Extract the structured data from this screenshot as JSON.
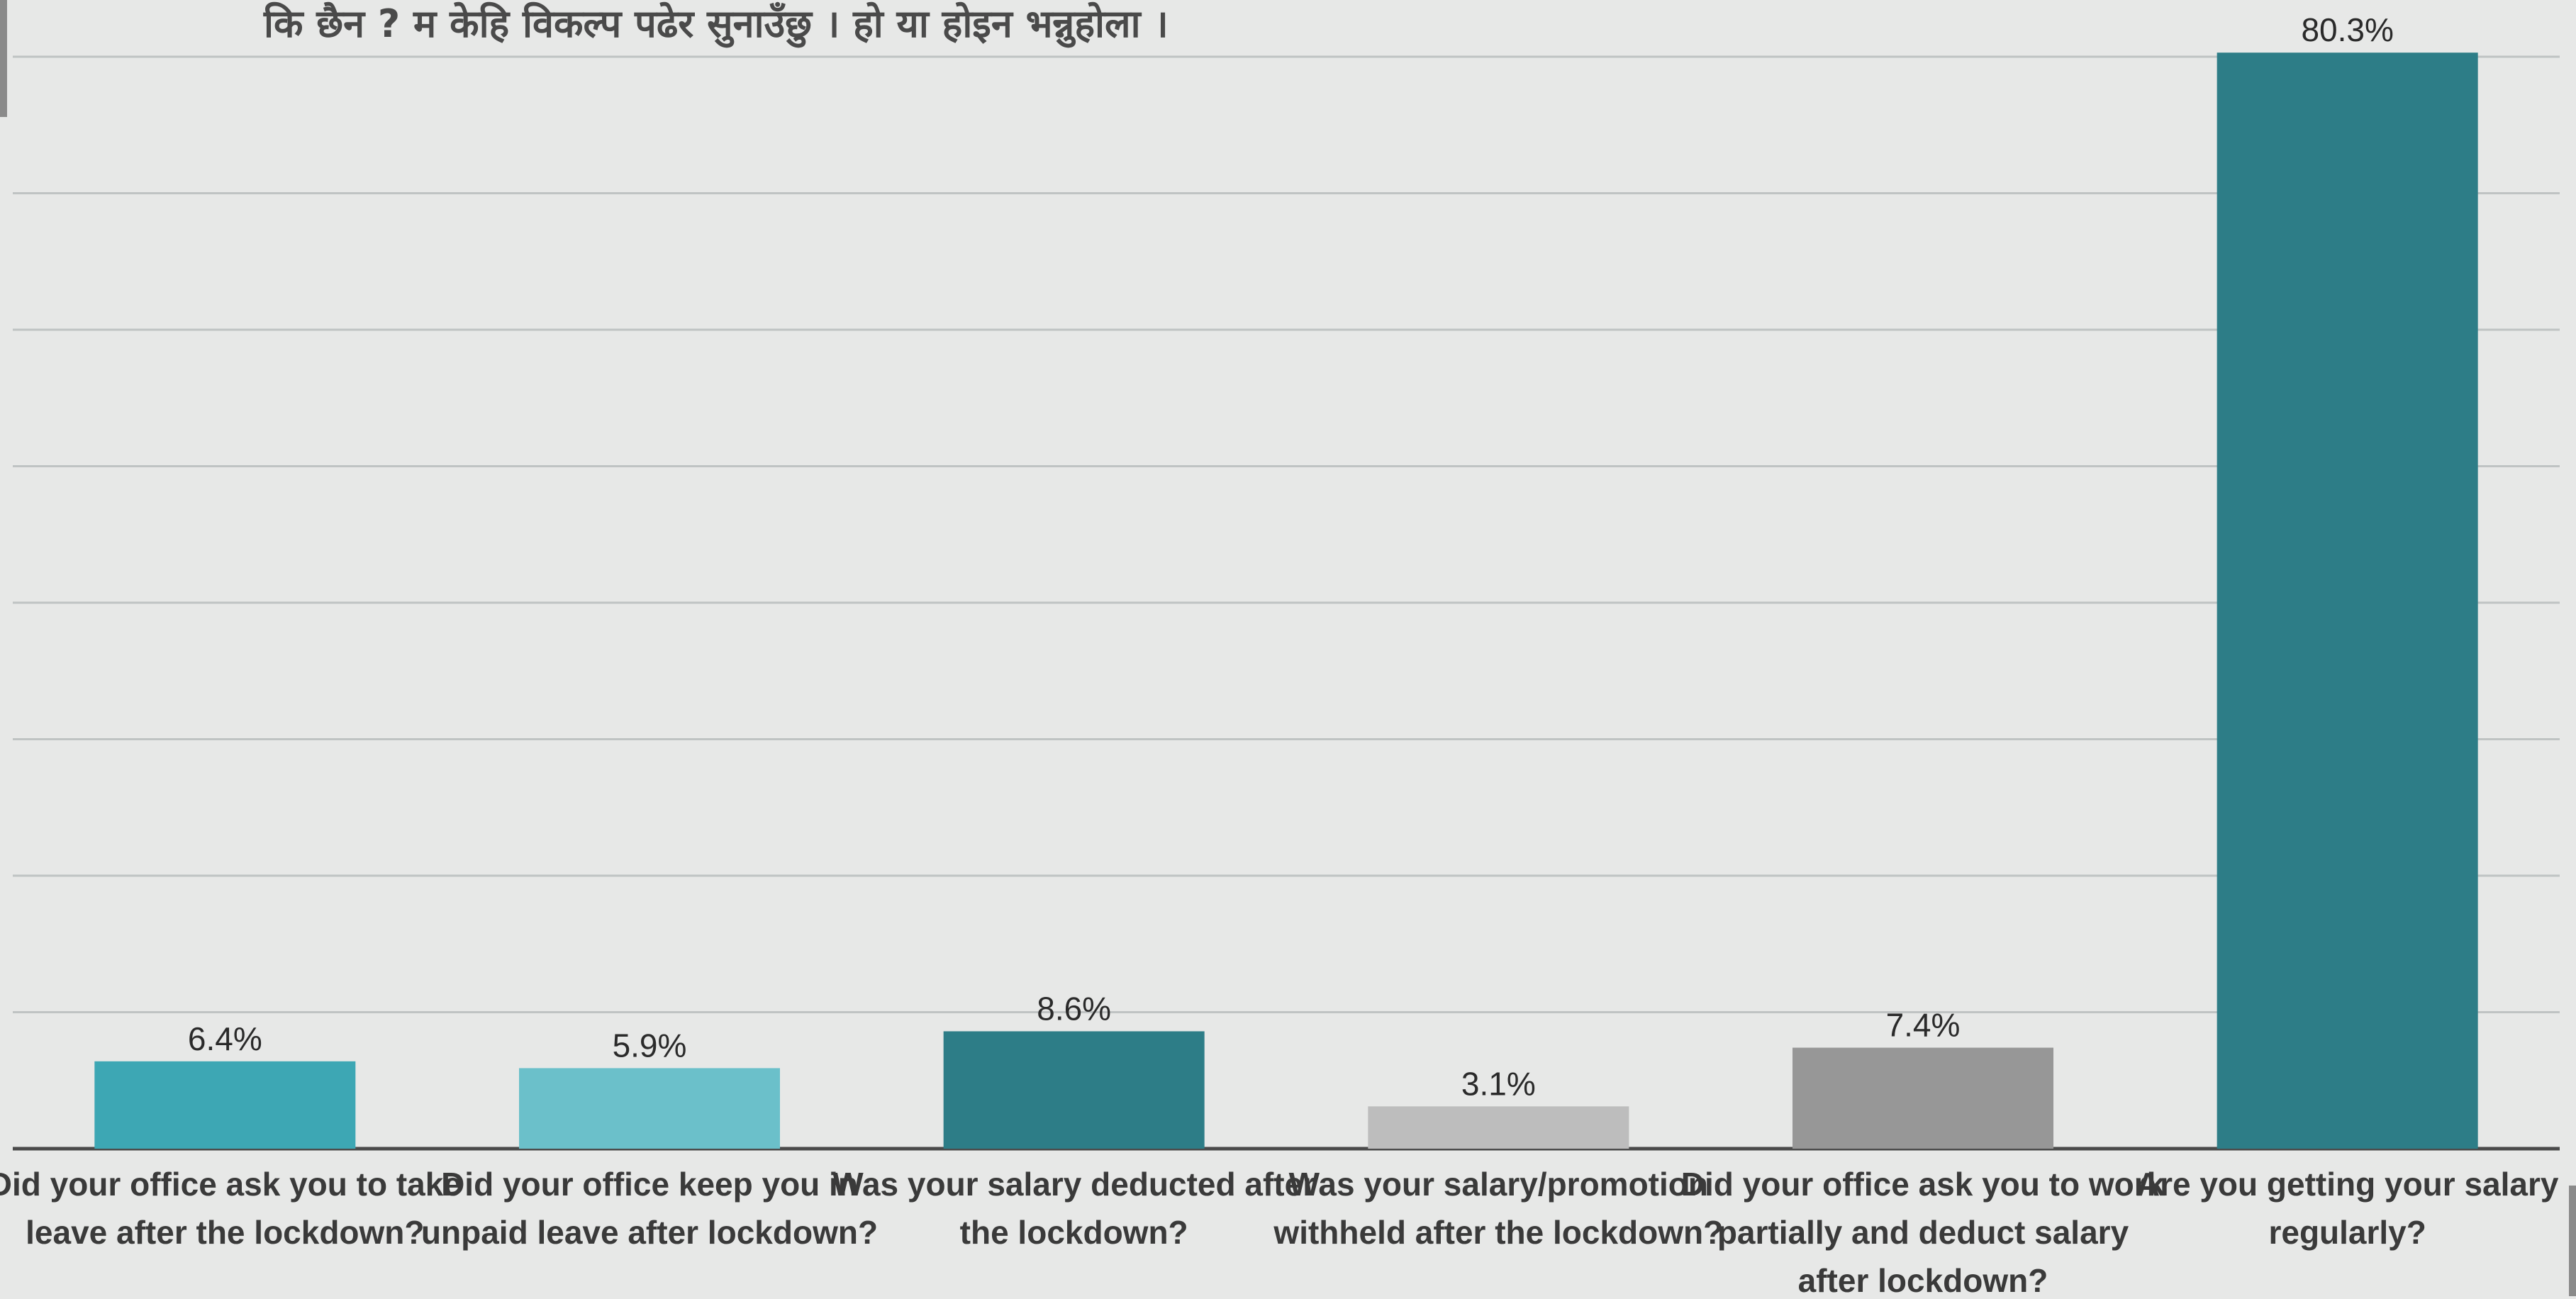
{
  "chart_data": {
    "type": "bar",
    "title": "कि छैन ? म केहि विकल्प पढेर सुनाउँछु । हो या होइन भन्नुहोला ।",
    "categories": [
      [
        "Did your office ask you to take",
        "leave after the lockdown?"
      ],
      [
        "Did your office keep you in",
        "unpaid leave after lockdown?"
      ],
      [
        "Was your salary deducted after",
        "the lockdown?"
      ],
      [
        "Was your salary/promotion",
        "withheld after the lockdown?"
      ],
      [
        "Did your office ask you to work",
        "partially and deduct salary",
        "after lockdown?"
      ],
      [
        "Are you getting your salary",
        "regularly?"
      ]
    ],
    "values": [
      6.4,
      5.9,
      8.6,
      3.1,
      7.4,
      80.3
    ],
    "value_labels": [
      "6.4%",
      "5.9%",
      "8.6%",
      "3.1%",
      "7.4%",
      "80.3%"
    ],
    "colors": [
      "#3da7b4",
      "#6bc0ca",
      "#2d7d87",
      "#bdbdbd",
      "#979797",
      "#2d7d87"
    ],
    "xlabel": "",
    "ylabel": "",
    "ylim": [
      0,
      80
    ],
    "gridlines": true,
    "legend": "none"
  }
}
